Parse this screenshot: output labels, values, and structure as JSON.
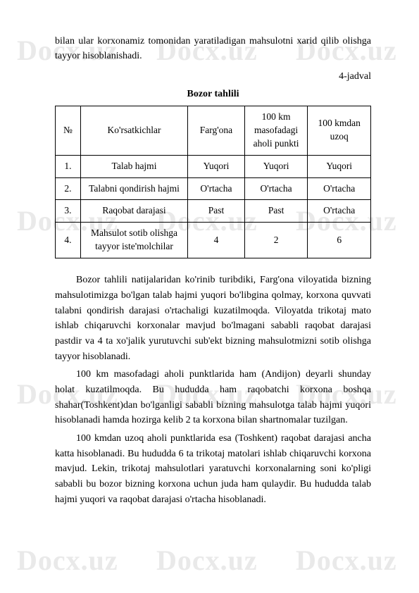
{
  "watermark": "Docx.uz",
  "intro": "bilan ular korxonamiz tomonidan yaratiladigan mahsulotni xarid qilib olishga tayyor hisoblanishadi.",
  "jadval_label": "4-jadval",
  "table_title": "Bozor tahlili",
  "table": {
    "headers": {
      "num": "№",
      "indicator": "Ko'rsatkichlar",
      "fargona": "Farg'ona",
      "km100_line1": "100 km",
      "km100_line2": "masofadagi",
      "km100_line3": "aholi punkti",
      "uzoq_line1": "100 kmdan",
      "uzoq_line2": "uzoq"
    },
    "rows": [
      {
        "num": "1.",
        "indicator": "Talab hajmi",
        "fargona": "Yuqori",
        "km100": "Yuqori",
        "uzoq": "Yuqori"
      },
      {
        "num": "2.",
        "indicator": "Talabni qondirish hajmi",
        "fargona": "O'rtacha",
        "km100": "O'rtacha",
        "uzoq": "O'rtacha"
      },
      {
        "num": "3.",
        "indicator": "Raqobat darajasi",
        "fargona": "Past",
        "km100": "Past",
        "uzoq": "O'rtacha"
      },
      {
        "num": "4.",
        "indicator_line1": "Mahsulot sotib olishga",
        "indicator_line2": "tayyor iste'molchilar",
        "fargona": "4",
        "km100": "2",
        "uzoq": "6"
      }
    ]
  },
  "para1": "Bozor tahlili natijalaridan ko'rinib turibdiki, Farg'ona viloyatida bizning mahsulotimizga bo'lgan talab hajmi yuqori bo'libgina qolmay, korxona quvvati talabni qondirish darajasi o'rtachaligi kuzatilmoqda. Viloyatda trikotaj mato ishlab chiqaruvchi korxonalar mavjud bo'lmagani sababli raqobat darajasi pastdir va 4 ta xo'jalik yurutuvchi sub'ekt bizning mahsulotmizni sotib olishga tayyor hisoblanadi.",
  "para2": "100 km masofadagi aholi punktlarida ham (Andijon) deyarli shunday holat kuzatilmoqda. Bu hududda ham raqobatchi korxona boshqa shahar(Toshkent)dan bo'lganligi sababli bizning mahsulotga talab hajmi yuqori hisoblanadi hamda hozirga kelib 2 ta korxona bilan shartnomalar tuzilgan.",
  "para3": "100 kmdan uzoq aholi punktlarida esa (Toshkent) raqobat darajasi ancha katta hisoblanadi. Bu hududda 6 ta trikotaj matolari ishlab chiqaruvchi korxona mavjud. Lekin, trikotaj mahsulotlari yaratuvchi korxonalarning soni ko'pligi sababli bu bozor bizning korxona uchun juda ham qulaydir. Bu hududda talab hajmi yuqori va raqobat darajasi o'rtacha hisoblanadi."
}
